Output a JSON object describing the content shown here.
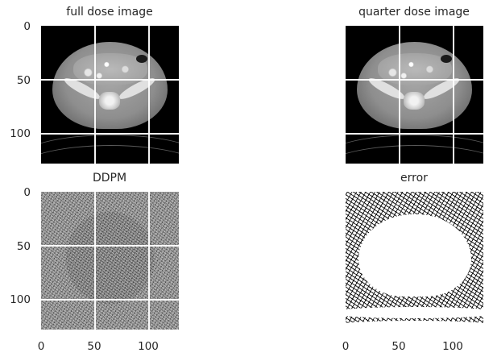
{
  "panels": [
    {
      "title": "full dose image",
      "image": "ct-scan"
    },
    {
      "title": "quarter dose image",
      "image": "ct-scan"
    },
    {
      "title": "DDPM",
      "image": "noise"
    },
    {
      "title": "error",
      "image": "binary-error"
    }
  ],
  "axes": {
    "y_ticks": [
      "0",
      "50",
      "100"
    ],
    "x_ticks": [
      "0",
      "50",
      "100"
    ]
  }
}
